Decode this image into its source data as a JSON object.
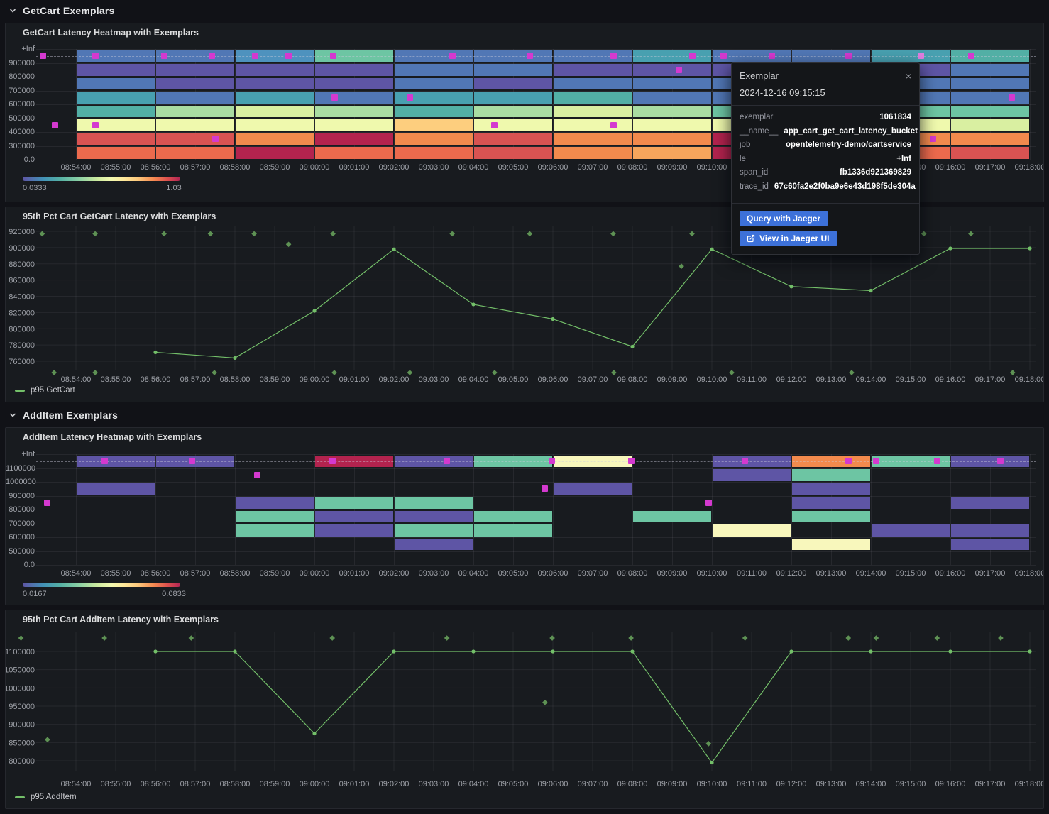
{
  "sections": {
    "getcart": {
      "title": "GetCart Exemplars"
    },
    "additem": {
      "title": "AddItem Exemplars"
    }
  },
  "colors": {
    "line": "#73BF69",
    "diamond": "#5E9254",
    "exemplar": "#D439CF",
    "exemplar_highlight": "#E07EE0",
    "button": "#3D71D9",
    "panel_bg": "#181B1F",
    "page_bg": "#111217"
  },
  "time_axis": {
    "start": "08:53:00",
    "ticks": [
      "08:54:00",
      "08:55:00",
      "08:56:00",
      "08:57:00",
      "08:58:00",
      "08:59:00",
      "09:00:00",
      "09:01:00",
      "09:02:00",
      "09:03:00",
      "09:04:00",
      "09:05:00",
      "09:06:00",
      "09:07:00",
      "09:08:00",
      "09:09:00",
      "09:10:00",
      "09:11:00",
      "09:12:00",
      "09:13:00",
      "09:14:00",
      "09:15:00",
      "09:16:00",
      "09:17:00",
      "09:18:00"
    ]
  },
  "palette": {
    "P": "#5E55A5",
    "B": "#5177B5",
    "SB": "#4E92BE",
    "TB": "#48A0B0",
    "T": "#52AFA5",
    "G": "#6DC5A3",
    "LG": "#A9DCA2",
    "YG": "#D9EFA1",
    "LY": "#EFF9AD",
    "CY": "#F8F7BC",
    "PE": "#FDCE7E",
    "O": "#F28A4D",
    "O2": "#F6A55C",
    "OR": "#EC6A4D",
    "R": "#D95352",
    "C": "#B3234E"
  },
  "tooltip": {
    "title": "Exemplar",
    "close": "×",
    "timestamp": "2024-12-16 09:15:15",
    "fields": [
      {
        "label": "exemplar",
        "value": "1061834"
      },
      {
        "label": "__name__",
        "value": "app_cart_get_cart_latency_bucket"
      },
      {
        "label": "job",
        "value": "opentelemetry-demo/cartservice"
      },
      {
        "label": "le",
        "value": "+Inf"
      },
      {
        "label": "span_id",
        "value": "fb1336d921369829"
      },
      {
        "label": "trace_id",
        "value": "67c60fa2e2f0ba9e6e43d198f5de304a"
      }
    ],
    "buttons": [
      {
        "label": "Query with Jaeger"
      },
      {
        "label": "View in Jaeger UI",
        "icon": "external-link-icon"
      }
    ]
  },
  "chart_data": [
    {
      "type": "heatmap",
      "title": "GetCart Latency Heatmap with Exemplars",
      "y_buckets": [
        "+Inf",
        "900000",
        "800000",
        "700000",
        "600000",
        "500000",
        "400000",
        "300000",
        "0.0"
      ],
      "bucket_seconds": 120,
      "col_times": [
        "08:54:00",
        "08:56:00",
        "08:58:00",
        "09:00:00",
        "09:02:00",
        "09:04:00",
        "09:06:00",
        "09:08:00",
        "09:10:00",
        "09:12:00",
        "09:14:00",
        "09:16:00"
      ],
      "cells": [
        [
          "B",
          "P",
          "B",
          "TB",
          "T",
          "LY",
          "R",
          "OR"
        ],
        [
          "B",
          "P",
          "P",
          "B",
          "LG",
          "LY",
          "R",
          "OR"
        ],
        [
          "SB",
          "P",
          "P",
          "TB",
          "YG",
          "LY",
          "O",
          "C"
        ],
        [
          "G",
          "P",
          "P",
          "B",
          "LG",
          "LY",
          "C",
          "OR"
        ],
        [
          "B",
          "B",
          "B",
          "TB",
          "T",
          "PE",
          "O",
          "OR"
        ],
        [
          "B",
          "B",
          "P",
          "TB",
          "LG",
          "LY",
          "R",
          "R"
        ],
        [
          "B",
          "P",
          "B",
          "T",
          "YG",
          "LY",
          "O",
          "O"
        ],
        [
          "TB",
          "P",
          "B",
          "B",
          "LG",
          "LY",
          "O",
          "O2"
        ],
        [
          "B",
          "P",
          "B",
          "B",
          "G",
          "LY",
          "C",
          "C"
        ],
        [
          "B",
          "P",
          "B",
          "TB",
          "LG",
          "LY",
          "O",
          "OR"
        ],
        [
          "TB",
          "P",
          "B",
          "B",
          "G",
          "LY",
          "O",
          "OR"
        ],
        [
          "T",
          "B",
          "B",
          "B",
          "G",
          "YG",
          "O",
          "R"
        ]
      ],
      "exemplars": [
        {
          "t": "08:53:10",
          "band": 0
        },
        {
          "t": "08:54:29",
          "band": 0
        },
        {
          "t": "08:56:13",
          "band": 0
        },
        {
          "t": "08:57:25",
          "band": 0
        },
        {
          "t": "08:58:30",
          "band": 0
        },
        {
          "t": "08:59:21",
          "band": 0
        },
        {
          "t": "09:00:28",
          "band": 0
        },
        {
          "t": "09:03:28",
          "band": 0
        },
        {
          "t": "09:05:25",
          "band": 0
        },
        {
          "t": "09:07:32",
          "band": 0
        },
        {
          "t": "09:09:30",
          "band": 0
        },
        {
          "t": "09:10:18",
          "band": 0
        },
        {
          "t": "09:11:30",
          "band": 0
        },
        {
          "t": "09:13:26",
          "band": 0
        },
        {
          "t": "09:15:15",
          "band": 0,
          "highlight": true
        },
        {
          "t": "09:16:32",
          "band": 0
        },
        {
          "t": "08:53:28",
          "band": 5
        },
        {
          "t": "08:54:29",
          "band": 5
        },
        {
          "t": "08:57:30",
          "band": 6
        },
        {
          "t": "09:00:30",
          "band": 3
        },
        {
          "t": "09:02:24",
          "band": 3
        },
        {
          "t": "09:04:32",
          "band": 5
        },
        {
          "t": "09:07:32",
          "band": 5
        },
        {
          "t": "09:09:10",
          "band": 1
        },
        {
          "t": "09:15:34",
          "band": 6
        },
        {
          "t": "09:17:33",
          "band": 3
        }
      ],
      "colorbar": {
        "min": "0.0333",
        "max": "1.03"
      }
    },
    {
      "type": "line",
      "title": "95th Pct Cart GetCart Latency with Exemplars",
      "legend": "p95 GetCart",
      "y_ticks": [
        "920000",
        "900000",
        "880000",
        "860000",
        "840000",
        "820000",
        "800000",
        "780000",
        "760000"
      ],
      "x": [
        "08:56:00",
        "08:58:00",
        "09:00:00",
        "09:02:00",
        "09:04:00",
        "09:06:00",
        "09:08:00",
        "09:10:00",
        "09:12:00",
        "09:14:00",
        "09:16:00",
        "09:18:00"
      ],
      "values": [
        771000,
        764000,
        822000,
        898000,
        830000,
        812000,
        778000,
        898000,
        852000,
        847000,
        899000,
        899000
      ],
      "exemplars": [
        {
          "t": "08:53:09",
          "v": 917000
        },
        {
          "t": "08:54:29",
          "v": 917000
        },
        {
          "t": "08:56:13",
          "v": 917000
        },
        {
          "t": "08:57:23",
          "v": 917000
        },
        {
          "t": "08:58:29",
          "v": 917000
        },
        {
          "t": "09:00:28",
          "v": 917000
        },
        {
          "t": "09:03:28",
          "v": 917000
        },
        {
          "t": "09:05:25",
          "v": 917000
        },
        {
          "t": "09:07:31",
          "v": 917000
        },
        {
          "t": "09:09:30",
          "v": 917000
        },
        {
          "t": "09:15:20",
          "v": 917000
        },
        {
          "t": "09:16:31",
          "v": 917000
        },
        {
          "t": "08:59:21",
          "v": 904000
        },
        {
          "t": "09:09:14",
          "v": 877000
        },
        {
          "t": "08:53:27",
          "v": 746000
        },
        {
          "t": "08:54:29",
          "v": 746000
        },
        {
          "t": "08:57:29",
          "v": 746000
        },
        {
          "t": "09:00:30",
          "v": 746000
        },
        {
          "t": "09:02:24",
          "v": 746000
        },
        {
          "t": "09:04:32",
          "v": 746000
        },
        {
          "t": "09:07:32",
          "v": 746000
        },
        {
          "t": "09:10:30",
          "v": 746000
        },
        {
          "t": "09:13:31",
          "v": 746000
        },
        {
          "t": "09:17:34",
          "v": 746000
        }
      ]
    },
    {
      "type": "heatmap",
      "title": "AddItem Latency Heatmap with Exemplars",
      "y_buckets": [
        "+Inf",
        "1100000",
        "1000000",
        "900000",
        "800000",
        "700000",
        "600000",
        "500000",
        "0.0"
      ],
      "bucket_seconds": 120,
      "col_times": [
        "08:54:00",
        "08:56:00",
        "08:58:00",
        "09:00:00",
        "09:02:00",
        "09:04:00",
        "09:06:00",
        "09:08:00",
        "09:10:00",
        "09:12:00",
        "09:14:00",
        "09:16:00"
      ],
      "cells": [
        [
          "P",
          "",
          "P",
          "",
          "",
          "",
          "",
          ""
        ],
        [
          "P",
          "",
          "",
          "",
          "",
          "",
          "",
          ""
        ],
        [
          "",
          "",
          "",
          "P",
          "G",
          "G",
          "",
          ""
        ],
        [
          "C",
          "",
          "",
          "G",
          "P",
          "P",
          "",
          ""
        ],
        [
          "P",
          "",
          "",
          "G",
          "P",
          "G",
          "P",
          ""
        ],
        [
          "G",
          "",
          "",
          "",
          "G",
          "G",
          "",
          ""
        ],
        [
          "CY",
          "",
          "P",
          "",
          "",
          "",
          "",
          ""
        ],
        [
          "",
          "",
          "",
          "",
          "G",
          "",
          "",
          ""
        ],
        [
          "P",
          "P",
          "",
          "",
          "",
          "CY",
          "",
          ""
        ],
        [
          "O",
          "G",
          "P",
          "P",
          "G",
          "",
          "CY",
          ""
        ],
        [
          "G",
          "",
          "",
          "",
          "",
          "P",
          "",
          ""
        ],
        [
          "P",
          "",
          "",
          "P",
          "",
          "P",
          "P",
          ""
        ]
      ],
      "exemplars": [
        {
          "t": "08:54:43",
          "band": 0
        },
        {
          "t": "08:56:55",
          "band": 0
        },
        {
          "t": "09:00:27",
          "band": 0
        },
        {
          "t": "09:03:20",
          "band": 0
        },
        {
          "t": "09:05:58",
          "band": 0
        },
        {
          "t": "09:07:58",
          "band": 0
        },
        {
          "t": "09:10:50",
          "band": 0
        },
        {
          "t": "09:13:26",
          "band": 0
        },
        {
          "t": "09:14:08",
          "band": 0
        },
        {
          "t": "09:15:40",
          "band": 0
        },
        {
          "t": "09:17:16",
          "band": 0
        },
        {
          "t": "08:53:17",
          "band": 3
        },
        {
          "t": "08:58:34",
          "band": 1
        },
        {
          "t": "09:05:48",
          "band": 2
        },
        {
          "t": "09:09:55",
          "band": 3
        }
      ],
      "colorbar": {
        "min": "0.0167",
        "max": "0.0833"
      }
    },
    {
      "type": "line",
      "title": "95th Pct Cart AddItem Latency with Exemplars",
      "legend": "p95 AddItem",
      "y_ticks": [
        "1100000",
        "1050000",
        "1000000",
        "950000",
        "900000",
        "850000",
        "800000"
      ],
      "x": [
        "08:56:00",
        "08:58:00",
        "09:00:00",
        "09:02:00",
        "09:04:00",
        "09:06:00",
        "09:08:00",
        "09:10:00",
        "09:12:00",
        "09:14:00",
        "09:16:00",
        "09:18:00"
      ],
      "values": [
        1100000,
        1100000,
        875000,
        1100000,
        1100000,
        1100000,
        1100000,
        795000,
        1100000,
        1100000,
        1100000,
        1100000
      ],
      "exemplars": [
        {
          "t": "08:52:37",
          "v": 1137000
        },
        {
          "t": "08:54:43",
          "v": 1137000
        },
        {
          "t": "08:56:54",
          "v": 1137000
        },
        {
          "t": "09:00:27",
          "v": 1137000
        },
        {
          "t": "09:03:20",
          "v": 1137000
        },
        {
          "t": "09:05:59",
          "v": 1137000
        },
        {
          "t": "09:07:58",
          "v": 1137000
        },
        {
          "t": "09:10:50",
          "v": 1137000
        },
        {
          "t": "09:13:26",
          "v": 1137000
        },
        {
          "t": "09:14:08",
          "v": 1137000
        },
        {
          "t": "09:15:40",
          "v": 1137000
        },
        {
          "t": "09:17:16",
          "v": 1137000
        },
        {
          "t": "08:53:17",
          "v": 858000
        },
        {
          "t": "09:05:48",
          "v": 960000
        },
        {
          "t": "09:09:55",
          "v": 847000
        }
      ]
    }
  ]
}
